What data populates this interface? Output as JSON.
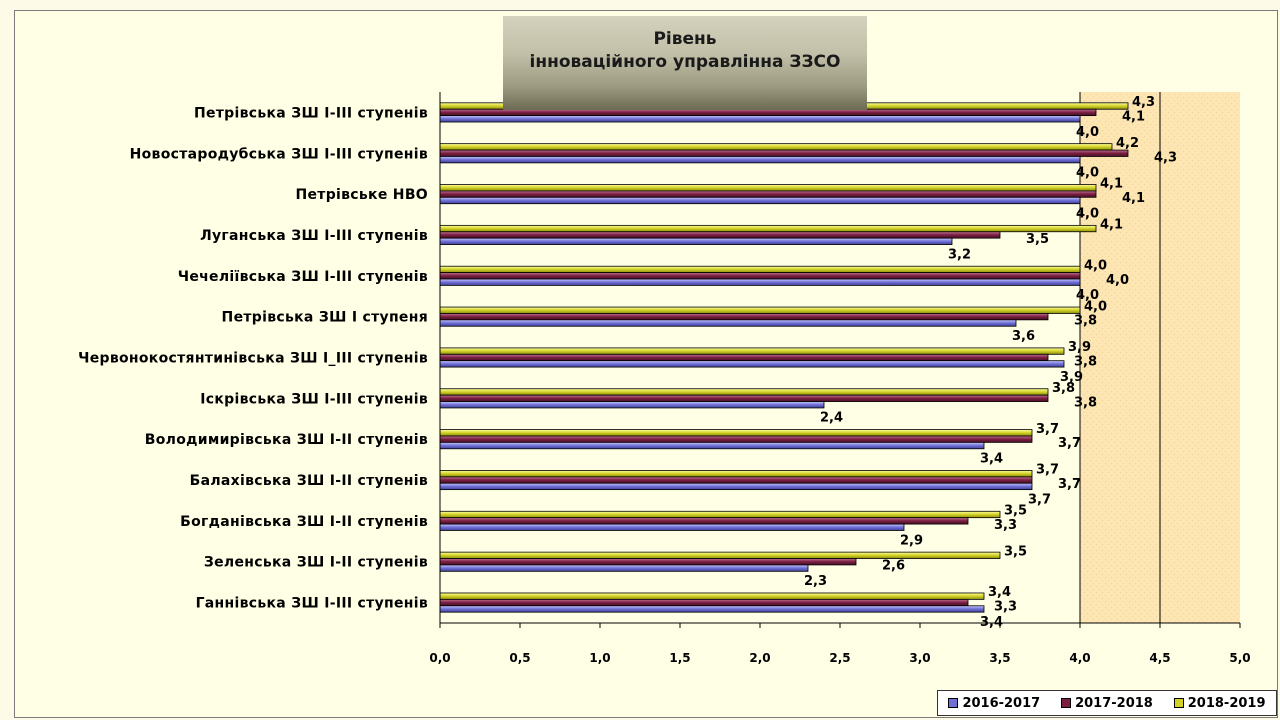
{
  "title": {
    "line1": "Рівень",
    "line2": "інноваційного управлінна ЗЗСО"
  },
  "chart_data": {
    "type": "bar",
    "orientation": "horizontal",
    "title": "Рівень інноваційного управлінна ЗЗСО",
    "xlim": [
      0,
      5
    ],
    "ticks": [
      "0,0",
      "0,5",
      "1,0",
      "1,5",
      "2,0",
      "2,5",
      "3,0",
      "3,5",
      "4,0",
      "4,5",
      "5,0"
    ],
    "categories": [
      "Петрівська  ЗШ І-ІІІ ступенів",
      "Новостародубська ЗШ І-ІІІ ступенів",
      "Петрівське НВО",
      "Луганська ЗШ І-ІІІ ступенів",
      "Чечеліївська ЗШ І-ІІІ ступенів",
      "Петрівська ЗШ І ступеня",
      "Червонокостянтинівська ЗШ І_ІІІ ступенів",
      "Іскрівська ЗШ І-ІІІ ступенів",
      "Володимирівська ЗШ І-ІІ ступенів",
      "Балахівська ЗШ І-ІІ ступенів",
      "Богданівська ЗШ І-ІІ ступенів",
      "Зеленська  ЗШ І-ІІ ступенів",
      "Ганнівська ЗШ І-ІІІ ступенів"
    ],
    "series": [
      {
        "name": "2016-2017",
        "color": "#6f6fd6",
        "values": [
          4.0,
          4.0,
          4.0,
          3.2,
          4.0,
          3.6,
          3.9,
          2.4,
          3.4,
          3.7,
          2.9,
          2.3,
          3.4
        ]
      },
      {
        "name": "2017-2018",
        "color": "#7a1f42",
        "values": [
          4.1,
          4.3,
          4.1,
          3.5,
          4.0,
          3.8,
          3.8,
          3.8,
          3.7,
          3.7,
          3.3,
          2.6,
          3.3
        ]
      },
      {
        "name": "2018-2019",
        "color": "#d2d226",
        "values": [
          4.3,
          4.2,
          4.1,
          4.1,
          4.0,
          4.0,
          3.9,
          3.8,
          3.7,
          3.7,
          3.5,
          3.5,
          3.4
        ]
      }
    ]
  }
}
